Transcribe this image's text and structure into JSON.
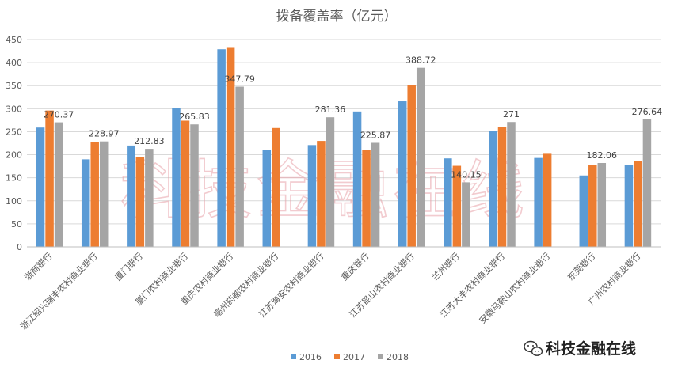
{
  "chart_data": {
    "type": "bar",
    "title": "拨备覆盖率（亿元）",
    "xlabel": "",
    "ylabel": "",
    "ylim": [
      0,
      450
    ],
    "yticks": [
      0,
      50,
      100,
      150,
      200,
      250,
      300,
      350,
      400,
      450
    ],
    "grid": true,
    "legend_position": "bottom",
    "categories": [
      "浙商银行",
      "浙江绍兴瑞丰农村商业银行",
      "厦门银行",
      "厦门农村商业银行",
      "重庆农村商业银行",
      "亳州药都农村商业银行",
      "江苏海安农村商业银行",
      "重庆银行",
      "江苏昆山农村商业银行",
      "兰州银行",
      "江苏大丰农村商业银行",
      "安徽马鞍山农村商业银行",
      "东莞银行",
      "广州农村商业银行"
    ],
    "series": [
      {
        "name": "2016",
        "color": "#5b9bd5",
        "values": [
          259,
          190,
          220,
          301,
          429,
          210,
          221,
          294,
          316,
          192,
          252,
          193,
          155,
          178
        ]
      },
      {
        "name": "2017",
        "color": "#ed7d31",
        "values": [
          296,
          227,
          195,
          274,
          432,
          258,
          230,
          210,
          351,
          176,
          260,
          202,
          178,
          186
        ]
      },
      {
        "name": "2018",
        "color": "#a5a5a5",
        "values": [
          270.37,
          228.97,
          212.83,
          265.83,
          347.79,
          null,
          281.36,
          225.87,
          388.72,
          140.15,
          271,
          null,
          182.06,
          276.64
        ]
      }
    ],
    "data_labels": [
      {
        "category_index": 0,
        "series": "2018",
        "text": "270.37"
      },
      {
        "category_index": 1,
        "series": "2018",
        "text": "228.97"
      },
      {
        "category_index": 2,
        "series": "2018",
        "text": "212.83"
      },
      {
        "category_index": 3,
        "series": "2018",
        "text": "265.83"
      },
      {
        "category_index": 4,
        "series": "2018",
        "text": "347.79"
      },
      {
        "category_index": 6,
        "series": "2018",
        "text": "281.36"
      },
      {
        "category_index": 7,
        "series": "2018",
        "text": "225.87"
      },
      {
        "category_index": 8,
        "series": "2018",
        "text": "388.72"
      },
      {
        "category_index": 9,
        "series": "2018",
        "text": "140.15"
      },
      {
        "category_index": 10,
        "series": "2018",
        "text": "271"
      },
      {
        "category_index": 12,
        "series": "2018",
        "text": "182.06"
      },
      {
        "category_index": 13,
        "series": "2018",
        "text": "276.64"
      }
    ]
  },
  "watermark": {
    "text": "科技金融在线"
  },
  "brand": {
    "text": "科技金融在线",
    "icon": "wechat-icon"
  },
  "colors": {
    "grid": "#d9d9d9",
    "axis": "#bfbfbf",
    "text": "#595959",
    "title": "#595959"
  }
}
